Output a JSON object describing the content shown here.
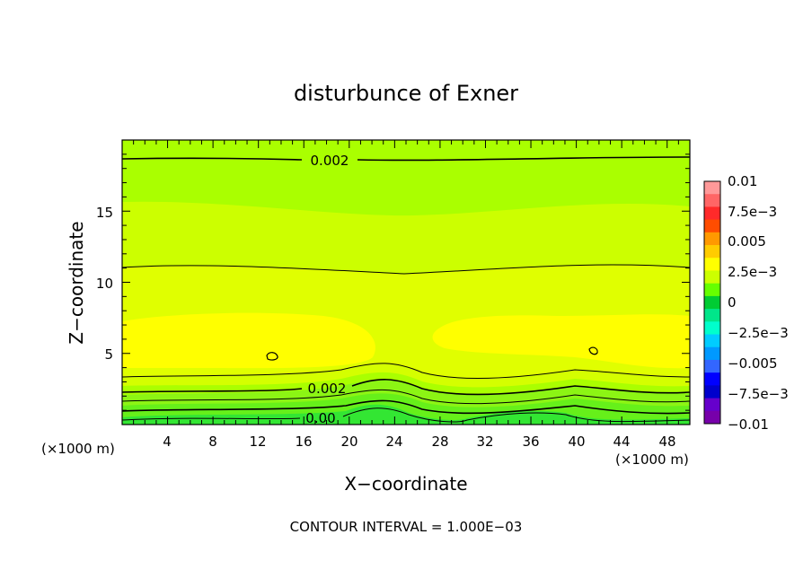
{
  "chart_data": {
    "type": "heatmap",
    "title": "disturbunce of Exner",
    "xlabel": "X−coordinate",
    "ylabel": "Z−coordinate",
    "x_unit_left": "(×1000 m)",
    "x_unit_right": "(×1000 m)",
    "footer": "CONTOUR INTERVAL = 1.000E−03",
    "xlim": [
      0,
      50
    ],
    "ylim": [
      0,
      20
    ],
    "x_ticks": [
      "4",
      "8",
      "12",
      "16",
      "20",
      "24",
      "28",
      "32",
      "36",
      "40",
      "44",
      "48"
    ],
    "y_ticks": [
      "5",
      "10",
      "15"
    ],
    "colorbar": {
      "range": [
        -0.01,
        0.01
      ],
      "tick_labels": [
        "0.01",
        "7.5e−3",
        "0.005",
        "2.5e−3",
        "0",
        "−2.5e−3",
        "−0.005",
        "−7.5e−3",
        "−0.01"
      ],
      "colors": [
        "#ff9999",
        "#ff6666",
        "#ff2a2a",
        "#ff4d00",
        "#ff9900",
        "#ffcc00",
        "#ffff00",
        "#ccff00",
        "#66ff00",
        "#00cc33",
        "#00e68a",
        "#00ffcc",
        "#00ccff",
        "#0099ff",
        "#3366ff",
        "#0000ff",
        "#0000cc",
        "#6600cc",
        "#7700aa"
      ]
    },
    "contour_labels": [
      "0.002",
      "0.002",
      "0.00"
    ],
    "bands": [
      {
        "value": 0.0,
        "color": "#33e633"
      },
      {
        "value": 0.0005,
        "color": "#66f01a"
      },
      {
        "value": 0.001,
        "color": "#8cf514"
      },
      {
        "value": 0.0015,
        "color": "#9ef500"
      },
      {
        "value": 0.002,
        "color": "#aaff00"
      },
      {
        "value": 0.0025,
        "color": "#ccff00"
      },
      {
        "value": 0.003,
        "color": "#e6ff00"
      },
      {
        "value": 0.0035,
        "color": "#ffff00"
      }
    ]
  }
}
